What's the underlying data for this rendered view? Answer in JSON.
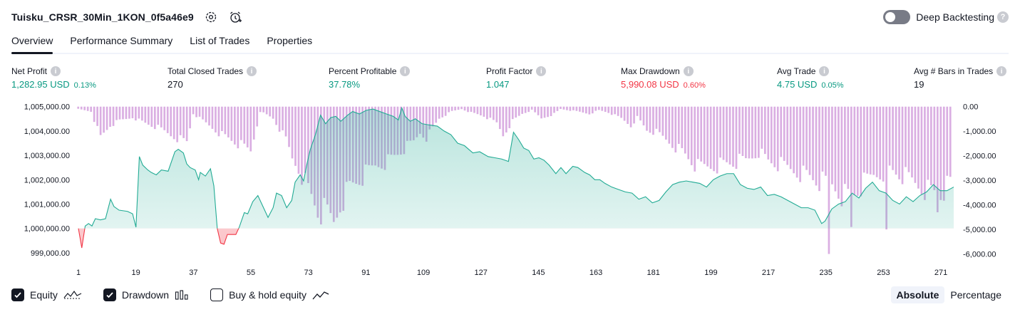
{
  "header": {
    "title": "Tuisku_CRSR_30Min_1KON_0f5a46e9",
    "settings_icon": "gear-icon",
    "alert_icon": "alarm-add-icon"
  },
  "deep_backtesting": {
    "label": "Deep Backtesting",
    "enabled": false,
    "help": "?"
  },
  "tabs": [
    {
      "label": "Overview",
      "active": true
    },
    {
      "label": "Performance Summary",
      "active": false
    },
    {
      "label": "List of Trades",
      "active": false
    },
    {
      "label": "Properties",
      "active": false
    }
  ],
  "metrics": [
    {
      "label": "Net Profit",
      "value": "1,282.95 USD",
      "pct": "0.13%",
      "color": "#089981"
    },
    {
      "label": "Total Closed Trades",
      "value": "270",
      "pct": "",
      "color": "#131722"
    },
    {
      "label": "Percent Profitable",
      "value": "37.78%",
      "pct": "",
      "color": "#089981"
    },
    {
      "label": "Profit Factor",
      "value": "1.047",
      "pct": "",
      "color": "#089981"
    },
    {
      "label": "Max Drawdown",
      "value": "5,990.08 USD",
      "pct": "0.60%",
      "color": "#f23645"
    },
    {
      "label": "Avg Trade",
      "value": "4.75 USD",
      "pct": "0.05%",
      "color": "#089981"
    },
    {
      "label": "Avg # Bars in Trades",
      "value": "19",
      "pct": "",
      "color": "#131722"
    }
  ],
  "info_glyph": "i",
  "chart_data": {
    "type": "area",
    "x_ticks": [
      "1",
      "19",
      "37",
      "55",
      "73",
      "91",
      "109",
      "127",
      "145",
      "163",
      "181",
      "199",
      "217",
      "235",
      "253",
      "271"
    ],
    "xlim": [
      1,
      275
    ],
    "left_axis": {
      "ticks": [
        "1,005,000.00",
        "1,004,000.00",
        "1,003,000.00",
        "1,002,000.00",
        "1,001,000.00",
        "1,000,000.00",
        "999,000.00"
      ],
      "ylim": [
        998850,
        1005050
      ],
      "baseline": 1000000
    },
    "right_axis": {
      "ticks": [
        "0.00",
        "-1,000.00",
        "-2,000.00",
        "-3,000.00",
        "-4,000.00",
        "-5,000.00",
        "-6,000.00"
      ],
      "ylim": [
        -6100,
        50
      ]
    },
    "series": [
      {
        "name": "Equity",
        "color": "#22ab94",
        "anchors": [
          [
            1,
            1000000
          ],
          [
            3,
            999200
          ],
          [
            5,
            1000100
          ],
          [
            7,
            1000200
          ],
          [
            9,
            1000100
          ],
          [
            11,
            1000400
          ],
          [
            14,
            1000350
          ],
          [
            17,
            1000400
          ],
          [
            20,
            1001200
          ],
          [
            22,
            1000900
          ],
          [
            25,
            1000750
          ],
          [
            30,
            1000700
          ],
          [
            33,
            1000600
          ],
          [
            35,
            1000050
          ],
          [
            37,
            1002950
          ],
          [
            39,
            1002600
          ],
          [
            42,
            1002400
          ],
          [
            44,
            1002300
          ],
          [
            47,
            1002200
          ],
          [
            50,
            1002400
          ],
          [
            54,
            1002350
          ],
          [
            58,
            1003150
          ],
          [
            60,
            1003250
          ],
          [
            63,
            1003100
          ],
          [
            65,
            1002650
          ],
          [
            67,
            1002500
          ],
          [
            70,
            1002400
          ],
          [
            72,
            1002000
          ],
          [
            73,
            1002300
          ],
          [
            76,
            1002150
          ],
          [
            79,
            1002450
          ],
          [
            81,
            1001750
          ],
          [
            83,
            1000000
          ],
          [
            85,
            999400
          ],
          [
            87,
            999350
          ],
          [
            89,
            999750
          ],
          [
            94,
            999750
          ],
          [
            96,
            1000050
          ],
          [
            99,
            1000650
          ],
          [
            101,
            1000600
          ],
          [
            104,
            1001100
          ],
          [
            107,
            1001350
          ],
          [
            110,
            1000900
          ],
          [
            113,
            1000450
          ],
          [
            116,
            1000850
          ],
          [
            118,
            1001450
          ],
          [
            121,
            1001350
          ],
          [
            124,
            1000850
          ],
          [
            127,
            1001150
          ],
          [
            129,
            1001900
          ],
          [
            132,
            1002200
          ],
          [
            134,
            1001950
          ],
          [
            136,
            1002650
          ],
          [
            138,
            1003250
          ],
          [
            141,
            1003850
          ],
          [
            144,
            1004650
          ],
          [
            147,
            1004300
          ],
          [
            150,
            1004550
          ],
          [
            153,
            1004600
          ],
          [
            156,
            1004400
          ],
          [
            160,
            1004650
          ],
          [
            163,
            1004800
          ],
          [
            167,
            1004700
          ],
          [
            171,
            1004850
          ],
          [
            175,
            1004900
          ],
          [
            179,
            1004800
          ],
          [
            183,
            1004700
          ],
          [
            187,
            1004600
          ],
          [
            190,
            1004450
          ],
          [
            192,
            1004950
          ],
          [
            194,
            1004600
          ],
          [
            197,
            1004400
          ],
          [
            200,
            1004500
          ],
          [
            204,
            1004300
          ],
          [
            208,
            1004250
          ],
          [
            213,
            1004200
          ],
          [
            217,
            1004000
          ],
          [
            221,
            1003850
          ],
          [
            225,
            1003500
          ],
          [
            229,
            1003400
          ],
          [
            234,
            1003100
          ],
          [
            238,
            1003150
          ],
          [
            243,
            1002950
          ],
          [
            247,
            1002900
          ],
          [
            251,
            1002850
          ],
          [
            255,
            1002750
          ],
          [
            258,
            1003950
          ],
          [
            261,
            1003650
          ],
          [
            264,
            1003300
          ],
          [
            267,
            1003200
          ],
          [
            270,
            1002850
          ],
          [
            273,
            1002900
          ],
          [
            276,
            1002800
          ],
          [
            279,
            1002600
          ],
          [
            283,
            1002250
          ],
          [
            286,
            1002500
          ],
          [
            289,
            1002250
          ],
          [
            293,
            1002550
          ],
          [
            296,
            1002500
          ],
          [
            300,
            1002300
          ],
          [
            303,
            1002200
          ],
          [
            306,
            1002000
          ],
          [
            309,
            1002000
          ],
          [
            312,
            1001850
          ],
          [
            316,
            1001700
          ],
          [
            320,
            1001600
          ],
          [
            324,
            1001500
          ],
          [
            328,
            1001450
          ],
          [
            332,
            1001200
          ],
          [
            336,
            1001300
          ],
          [
            340,
            1001050
          ],
          [
            344,
            1001150
          ],
          [
            348,
            1001500
          ],
          [
            352,
            1001800
          ],
          [
            356,
            1001900
          ],
          [
            360,
            1001950
          ],
          [
            364,
            1001900
          ],
          [
            368,
            1001850
          ],
          [
            372,
            1001700
          ],
          [
            376,
            1002000
          ],
          [
            380,
            1002150
          ],
          [
            384,
            1002250
          ],
          [
            388,
            1002250
          ],
          [
            392,
            1001800
          ],
          [
            396,
            1001650
          ],
          [
            400,
            1001600
          ],
          [
            404,
            1001700
          ],
          [
            408,
            1001350
          ],
          [
            412,
            1001400
          ],
          [
            416,
            1001300
          ],
          [
            420,
            1001150
          ],
          [
            424,
            1001000
          ],
          [
            428,
            1000850
          ],
          [
            432,
            1000850
          ],
          [
            436,
            1000750
          ],
          [
            440,
            1000200
          ],
          [
            442,
            1000300
          ],
          [
            446,
            1000800
          ],
          [
            450,
            1001000
          ],
          [
            454,
            1001100
          ],
          [
            458,
            1001450
          ],
          [
            462,
            1001250
          ],
          [
            466,
            1001650
          ],
          [
            470,
            1001900
          ],
          [
            474,
            1001550
          ],
          [
            478,
            1001450
          ],
          [
            482,
            1001150
          ],
          [
            486,
            1001000
          ],
          [
            490,
            1001300
          ],
          [
            494,
            1001100
          ],
          [
            498,
            1001350
          ],
          [
            502,
            1001500
          ],
          [
            506,
            1001800
          ],
          [
            510,
            1001550
          ],
          [
            514,
            1001550
          ],
          [
            518,
            1001700
          ]
        ],
        "note_x_units": "anchors x measured in 0.5-trade steps"
      },
      {
        "name": "Drawdown",
        "color": "#ce93d8",
        "profile": [
          [
            1,
            -100
          ],
          [
            5,
            -200
          ],
          [
            8,
            -1300
          ],
          [
            11,
            -800
          ],
          [
            14,
            -600
          ],
          [
            18,
            -450
          ],
          [
            22,
            -700
          ],
          [
            26,
            -900
          ],
          [
            30,
            -1200
          ],
          [
            35,
            -1500
          ],
          [
            37,
            -300
          ],
          [
            41,
            -700
          ],
          [
            45,
            -1100
          ],
          [
            50,
            -1500
          ],
          [
            55,
            -1900
          ],
          [
            58,
            -200
          ],
          [
            62,
            -500
          ],
          [
            66,
            -1400
          ],
          [
            68,
            -2200
          ],
          [
            70,
            -2600
          ],
          [
            73,
            -3500
          ],
          [
            76,
            -4400
          ],
          [
            79,
            -4600
          ],
          [
            81,
            -4900
          ],
          [
            83,
            -4100
          ],
          [
            86,
            -3400
          ],
          [
            90,
            -3000
          ],
          [
            94,
            -2500
          ],
          [
            98,
            -2300
          ],
          [
            102,
            -1900
          ],
          [
            106,
            -1500
          ],
          [
            108,
            -1100
          ],
          [
            110,
            -1300
          ],
          [
            114,
            -500
          ],
          [
            118,
            -200
          ],
          [
            121,
            -100
          ],
          [
            124,
            -250
          ],
          [
            128,
            -400
          ],
          [
            132,
            -700
          ],
          [
            134,
            -1200
          ],
          [
            137,
            -600
          ],
          [
            140,
            -300
          ],
          [
            143,
            -150
          ],
          [
            146,
            -500
          ],
          [
            150,
            -300
          ],
          [
            152,
            -100
          ],
          [
            157,
            -200
          ],
          [
            161,
            -300
          ],
          [
            164,
            -150
          ],
          [
            167,
            -250
          ],
          [
            171,
            -500
          ],
          [
            174,
            -800
          ],
          [
            176,
            -450
          ],
          [
            179,
            -1000
          ],
          [
            182,
            -1100
          ],
          [
            186,
            -1500
          ],
          [
            190,
            -1900
          ],
          [
            195,
            -2600
          ],
          [
            200,
            -2500
          ],
          [
            205,
            -2400
          ],
          [
            210,
            -2300
          ],
          [
            214,
            -1900
          ],
          [
            217,
            -2300
          ],
          [
            221,
            -2500
          ],
          [
            225,
            -2700
          ],
          [
            229,
            -2900
          ],
          [
            233,
            -3200
          ],
          [
            237,
            -3300
          ],
          [
            240,
            -3700
          ],
          [
            243,
            -3800
          ],
          [
            246,
            -3400
          ],
          [
            250,
            -2900
          ],
          [
            255,
            -2700
          ],
          [
            260,
            -3000
          ],
          [
            265,
            -3400
          ],
          [
            268,
            -3600
          ],
          [
            271,
            -3700
          ],
          [
            274,
            -3300
          ]
        ],
        "spikes": [
          [
            236,
            -6000
          ],
          [
            243,
            -4900
          ],
          [
            254,
            -5000
          ],
          [
            270,
            -4300
          ]
        ]
      }
    ]
  },
  "legend": [
    {
      "label": "Equity",
      "checked": true,
      "icon": "equity-line-icon"
    },
    {
      "label": "Drawdown",
      "checked": true,
      "icon": "drawdown-bars-icon"
    },
    {
      "label": "Buy & hold equity",
      "checked": false,
      "icon": "buy-hold-line-icon"
    }
  ],
  "mode": {
    "absolute": "Absolute",
    "percentage": "Percentage",
    "selected": "Absolute"
  }
}
